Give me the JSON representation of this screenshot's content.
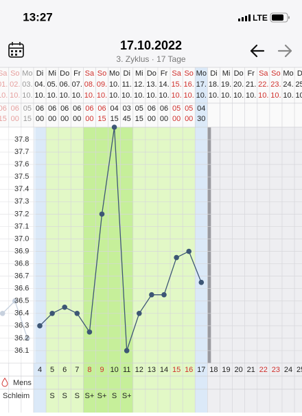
{
  "status": {
    "time": "13:27",
    "network": "LTE"
  },
  "header": {
    "title": "17.10.2022",
    "subtitle": "3. Zyklus · 17 Tage"
  },
  "chart_data": {
    "type": "line",
    "weekdays": [
      "Sa",
      "So",
      "Mo",
      "Di",
      "Mi",
      "Do",
      "Fr",
      "Sa",
      "So",
      "Mo",
      "Di",
      "Mi",
      "Do",
      "Fr",
      "Sa",
      "So",
      "Mo",
      "Di",
      "Mi",
      "Do",
      "Fr",
      "Sa",
      "So",
      "Mo",
      "Di"
    ],
    "dates": [
      "01.",
      "02.",
      "03.",
      "04.",
      "05.",
      "06.",
      "07.",
      "08.",
      "09.",
      "10.",
      "11.",
      "12.",
      "13.",
      "14.",
      "15.",
      "16.",
      "17.",
      "18.",
      "19.",
      "20.",
      "21.",
      "22.",
      "23.",
      "24.",
      "25."
    ],
    "months": [
      "10.",
      "10.",
      "10.",
      "10.",
      "10.",
      "10.",
      "10.",
      "10.",
      "10.",
      "10.",
      "10.",
      "10.",
      "10.",
      "10.",
      "10.",
      "10.",
      "10.",
      "10.",
      "10.",
      "10.",
      "10.",
      "10.",
      "10.",
      "10.",
      "10."
    ],
    "hours": [
      "06",
      "06",
      "05",
      "06",
      "06",
      "06",
      "06",
      "06",
      "06",
      "04",
      "03",
      "05",
      "06",
      "06",
      "05",
      "05",
      "04",
      null,
      null,
      null,
      null,
      null,
      null,
      null,
      null
    ],
    "minutes": [
      "15",
      "00",
      "15",
      "00",
      "00",
      "00",
      "00",
      "00",
      "15",
      "15",
      "45",
      "15",
      "00",
      "00",
      "00",
      "00",
      "30",
      null,
      null,
      null,
      null,
      null,
      null,
      null,
      null
    ],
    "cycle_days": [
      null,
      null,
      null,
      4,
      5,
      6,
      7,
      8,
      9,
      10,
      11,
      12,
      13,
      14,
      15,
      16,
      17,
      18,
      19,
      20,
      21,
      22,
      23,
      24,
      25
    ],
    "row_labels": [
      "Mens",
      "Schleim"
    ],
    "schleim": [
      null,
      null,
      null,
      null,
      "S",
      "S",
      "S",
      "S+",
      "S+",
      "S",
      "S+",
      null,
      null,
      null,
      null,
      null,
      null,
      null,
      null,
      null,
      null,
      null,
      null,
      null,
      null
    ],
    "ylim": [
      36.0,
      37.9
    ],
    "yticks": [
      36.1,
      36.2,
      36.3,
      36.4,
      36.5,
      36.6,
      36.7,
      36.8,
      36.9,
      {
        "value": 37,
        "label": "37.0"
      },
      37.1,
      37.2,
      37.3,
      37.4,
      37.5,
      37.6,
      37.7,
      37.8
    ],
    "grid": true,
    "series": [
      {
        "color": "#a9b8cc",
        "values": [
          36.4,
          36.5,
          36.2,
          null,
          null,
          null,
          null,
          null,
          null,
          null,
          null,
          null,
          null,
          null,
          null,
          null,
          null,
          null,
          null,
          null,
          null,
          null,
          null,
          null,
          null
        ]
      },
      {
        "color": "#3d5675",
        "values": [
          null,
          null,
          null,
          36.3,
          36.4,
          36.45,
          36.4,
          36.25,
          37.2,
          37.9,
          36.1,
          36.4,
          36.55,
          36.55,
          36.85,
          36.9,
          36.65,
          null,
          null,
          null,
          null,
          null,
          null,
          null,
          null
        ]
      }
    ]
  }
}
